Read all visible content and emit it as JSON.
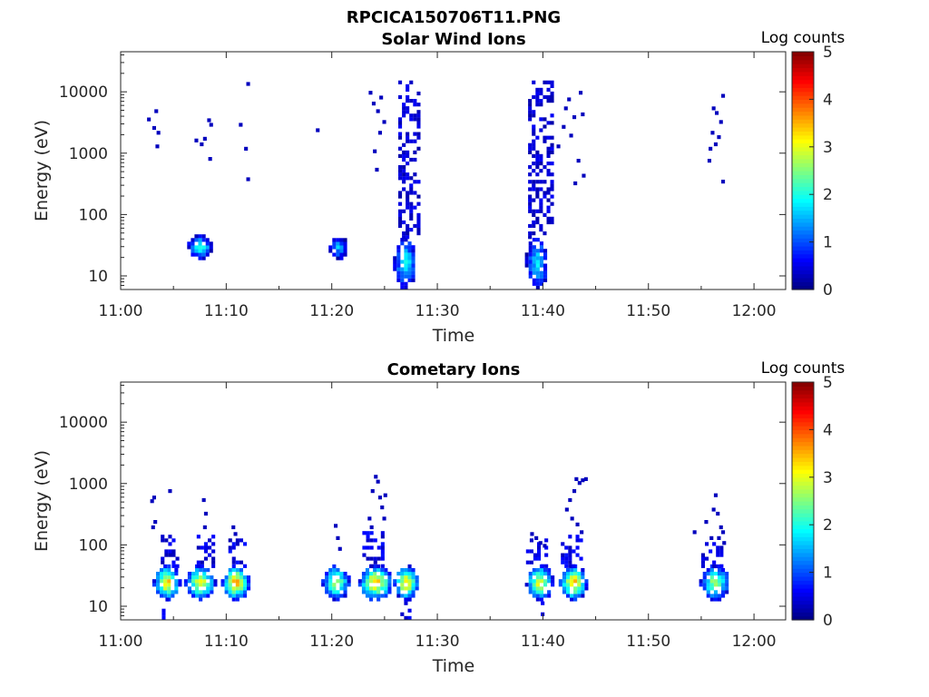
{
  "figure": {
    "title": "RPCICA150706T11.PNG"
  },
  "chart_data": [
    {
      "type": "heatmap",
      "title": "Solar Wind Ions",
      "xlabel": "Time",
      "ylabel": "Energy (eV)",
      "x_ticks": [
        "11:00",
        "11:10",
        "11:20",
        "11:30",
        "11:40",
        "11:50",
        "12:00"
      ],
      "x_range_minutes": [
        0,
        63
      ],
      "y_scale": "log",
      "y_ticks": [
        "10",
        "100",
        "1000",
        "10000"
      ],
      "y_range": [
        6,
        45000
      ],
      "colorbar": {
        "label": "Log counts",
        "ticks": [
          "0",
          "1",
          "2",
          "3",
          "4",
          "5"
        ],
        "range": [
          0,
          5
        ]
      },
      "grid": false,
      "clusters": [
        {
          "t": [
            6.3,
            8.5
          ],
          "e": [
            18,
            42
          ],
          "peak": 2.3
        },
        {
          "t": [
            19.7,
            21.3
          ],
          "e": [
            18,
            40
          ],
          "peak": 1.8
        },
        {
          "t": [
            25.8,
            27.8
          ],
          "e": [
            6,
            40
          ],
          "peak": 2.2
        },
        {
          "t": [
            38.3,
            40.3
          ],
          "e": [
            6,
            40
          ],
          "peak": 2.0
        }
      ],
      "columns": [
        {
          "t": [
            26.3,
            28.3
          ],
          "e": [
            40,
            14000
          ],
          "peak": 0.5
        },
        {
          "t": [
            38.6,
            40.8
          ],
          "e": [
            40,
            14000
          ],
          "peak": 0.5
        }
      ],
      "points": [
        [
          2.5,
          3300
        ],
        [
          3.0,
          2400
        ],
        [
          3.2,
          4500
        ],
        [
          3.4,
          2000
        ],
        [
          3.3,
          1200
        ],
        [
          7.0,
          1500
        ],
        [
          7.5,
          1300
        ],
        [
          7.8,
          1600
        ],
        [
          8.2,
          3200
        ],
        [
          8.4,
          2700
        ],
        [
          8.3,
          750
        ],
        [
          11.2,
          2700
        ],
        [
          11.7,
          1100
        ],
        [
          11.9,
          12500
        ],
        [
          11.9,
          350
        ],
        [
          18.5,
          2200
        ],
        [
          23.5,
          9000
        ],
        [
          23.8,
          6000
        ],
        [
          24.2,
          4500
        ],
        [
          24.4,
          2000
        ],
        [
          23.9,
          1000
        ],
        [
          24.1,
          500
        ],
        [
          24.5,
          7500
        ],
        [
          24.8,
          3000
        ],
        [
          41.3,
          1200
        ],
        [
          41.8,
          2500
        ],
        [
          42.0,
          5000
        ],
        [
          42.3,
          7000
        ],
        [
          42.5,
          1800
        ],
        [
          42.8,
          3600
        ],
        [
          43.2,
          700
        ],
        [
          43.4,
          9000
        ],
        [
          43.6,
          4000
        ],
        [
          42.9,
          300
        ],
        [
          43.7,
          400
        ],
        [
          55.6,
          700
        ],
        [
          55.9,
          2000
        ],
        [
          56.0,
          5000
        ],
        [
          56.3,
          4200
        ],
        [
          56.5,
          1700
        ],
        [
          56.7,
          3000
        ],
        [
          56.9,
          8000
        ],
        [
          56.9,
          320
        ],
        [
          55.7,
          1100
        ],
        [
          56.2,
          1300
        ]
      ]
    },
    {
      "type": "heatmap",
      "title": "Cometary Ions",
      "xlabel": "Time",
      "ylabel": "Energy (eV)",
      "x_ticks": [
        "11:00",
        "11:10",
        "11:20",
        "11:30",
        "11:40",
        "11:50",
        "12:00"
      ],
      "x_range_minutes": [
        0,
        63
      ],
      "y_scale": "log",
      "y_ticks": [
        "10",
        "100",
        "1000",
        "10000"
      ],
      "y_range": [
        6,
        45000
      ],
      "colorbar": {
        "label": "Log counts",
        "ticks": [
          "0",
          "1",
          "2",
          "3",
          "4",
          "5"
        ],
        "range": [
          0,
          5
        ]
      },
      "grid": false,
      "clusters": [
        {
          "t": [
            3.0,
            5.5
          ],
          "e": [
            12,
            42
          ],
          "peak": 3.7
        },
        {
          "t": [
            6.0,
            8.8
          ],
          "e": [
            12,
            42
          ],
          "peak": 3.4
        },
        {
          "t": [
            9.5,
            12.0
          ],
          "e": [
            12,
            42
          ],
          "peak": 3.9
        },
        {
          "t": [
            19.0,
            21.5
          ],
          "e": [
            12,
            42
          ],
          "peak": 3.2
        },
        {
          "t": [
            22.5,
            25.5
          ],
          "e": [
            12,
            42
          ],
          "peak": 3.9
        },
        {
          "t": [
            25.8,
            28.0
          ],
          "e": [
            12,
            42
          ],
          "peak": 3.8
        },
        {
          "t": [
            38.3,
            40.8
          ],
          "e": [
            12,
            42
          ],
          "peak": 3.4
        },
        {
          "t": [
            41.5,
            44.0
          ],
          "e": [
            12,
            42
          ],
          "peak": 3.9
        },
        {
          "t": [
            54.8,
            57.5
          ],
          "e": [
            12,
            42
          ],
          "peak": 3.0
        }
      ],
      "columns": [
        {
          "t": [
            3.8,
            5.2
          ],
          "e": [
            42,
            130
          ],
          "peak": 0.6
        },
        {
          "t": [
            7.2,
            8.6
          ],
          "e": [
            42,
            130
          ],
          "peak": 0.6
        },
        {
          "t": [
            10.2,
            11.6
          ],
          "e": [
            42,
            120
          ],
          "peak": 0.6
        },
        {
          "t": [
            22.9,
            24.9
          ],
          "e": [
            42,
            160
          ],
          "peak": 0.6
        },
        {
          "t": [
            38.4,
            40.2
          ],
          "e": [
            42,
            140
          ],
          "peak": 0.6
        },
        {
          "t": [
            41.7,
            43.5
          ],
          "e": [
            42,
            140
          ],
          "peak": 0.6
        },
        {
          "t": [
            55.0,
            57.0
          ],
          "e": [
            42,
            110
          ],
          "peak": 0.6
        },
        {
          "t": [
            26.5,
            27.5
          ],
          "e": [
            6,
            12
          ],
          "peak": 0.6
        },
        {
          "t": [
            3.9,
            4.3
          ],
          "e": [
            6,
            12
          ],
          "peak": 0.6
        },
        {
          "t": [
            39.8,
            40.0
          ],
          "e": [
            6,
            12
          ],
          "peak": 0.6
        }
      ],
      "points": [
        [
          2.8,
          480
        ],
        [
          3.0,
          550
        ],
        [
          3.1,
          220
        ],
        [
          2.9,
          180
        ],
        [
          4.5,
          700
        ],
        [
          7.7,
          500
        ],
        [
          7.9,
          300
        ],
        [
          7.8,
          180
        ],
        [
          10.5,
          180
        ],
        [
          10.7,
          140
        ],
        [
          20.2,
          190
        ],
        [
          20.4,
          120
        ],
        [
          20.6,
          80
        ],
        [
          23.4,
          250
        ],
        [
          23.7,
          700
        ],
        [
          24.0,
          1200
        ],
        [
          24.2,
          1000
        ],
        [
          24.4,
          550
        ],
        [
          24.6,
          380
        ],
        [
          24.8,
          250
        ],
        [
          23.6,
          180
        ],
        [
          24.9,
          600
        ],
        [
          38.8,
          140
        ],
        [
          39.2,
          120
        ],
        [
          39.6,
          100
        ],
        [
          40.0,
          90
        ],
        [
          42.1,
          350
        ],
        [
          42.4,
          500
        ],
        [
          42.8,
          700
        ],
        [
          43.0,
          1100
        ],
        [
          43.3,
          950
        ],
        [
          43.6,
          1050
        ],
        [
          43.9,
          1100
        ],
        [
          42.6,
          250
        ],
        [
          43.1,
          200
        ],
        [
          43.5,
          150
        ],
        [
          54.2,
          150
        ],
        [
          55.3,
          220
        ],
        [
          56.0,
          350
        ],
        [
          56.2,
          600
        ],
        [
          56.4,
          300
        ],
        [
          56.7,
          180
        ],
        [
          56.9,
          150
        ],
        [
          56.5,
          120
        ],
        [
          55.8,
          120
        ],
        [
          57.0,
          100
        ]
      ]
    }
  ]
}
